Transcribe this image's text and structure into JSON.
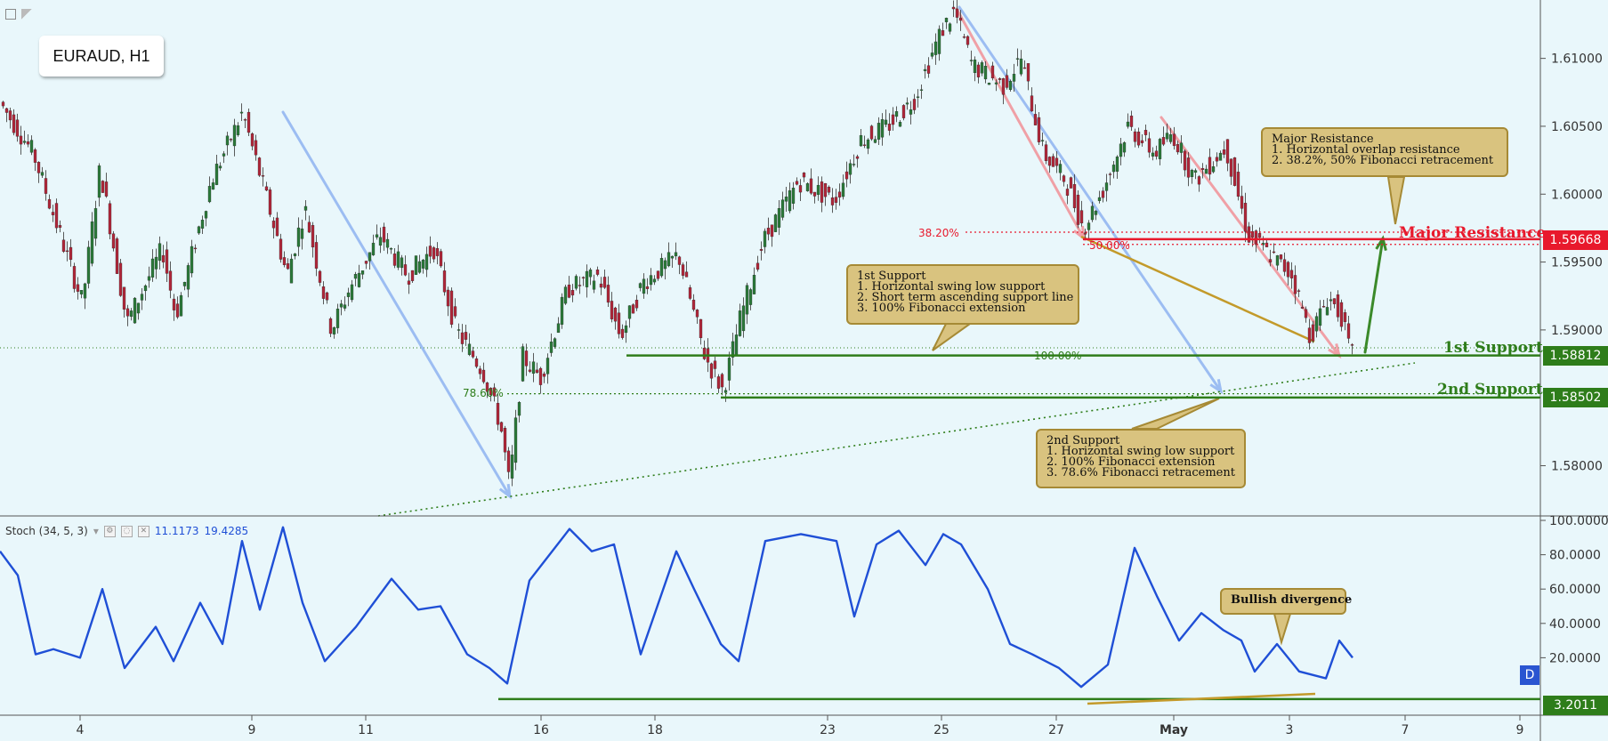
{
  "symbol_label": "EURAUD, H1",
  "stoch_header": {
    "name": "Stoch (34, 5, 3)",
    "k_value": "11.1173",
    "d_value": "19.4285"
  },
  "d_badge": "D",
  "levels": {
    "major_resistance": {
      "label": "Major Resistance",
      "price_tag": "1.59668",
      "color": "#e8192c"
    },
    "first_support": {
      "label": "1st Support",
      "price_tag": "1.58812",
      "color": "#2e7d1a"
    },
    "second_support": {
      "label": "2nd Support",
      "price_tag": "1.58502",
      "color": "#2e7d1a"
    },
    "stoch_support": {
      "price_tag": "3.2011",
      "color": "#2e7d1a"
    }
  },
  "fib_labels": {
    "fib_3820": "38.20%",
    "fib_5000": "50.00%",
    "fib_10000": "100.00%",
    "fib_7860": "78.60%"
  },
  "annotations": {
    "major_resistance_box": [
      "Major Resistance",
      "1. Horizontal overlap resistance",
      "2. 38.2%, 50% Fibonacci retracement"
    ],
    "first_support_box": [
      "1st Support",
      "1. Horizontal swing low support",
      "2. Short term ascending support line",
      "3. 100% Fibonacci extension"
    ],
    "second_support_box": [
      "2nd Support",
      "1. Horizontal swing low support",
      "2. 100% Fibonacci extension",
      "3. 78.6% Fibonacci retracement"
    ],
    "divergence_box": [
      "Bullish divergence"
    ]
  },
  "chart_data": [
    {
      "type": "candlestick",
      "title": "EURAUD, H1",
      "x_tick_labels": [
        "4",
        "9",
        "11",
        "16",
        "18",
        "23",
        "25",
        "27",
        "May",
        "3",
        "7",
        "9"
      ],
      "y_tick_labels": [
        "1.61000",
        "1.60500",
        "1.60000",
        "1.59500",
        "1.59000",
        "1.58000"
      ],
      "ylim": [
        1.5763,
        1.6143
      ],
      "price_path": [
        {
          "x": 0,
          "y": 1.607
        },
        {
          "x": 40,
          "y": 1.603
        },
        {
          "x": 95,
          "y": 1.592
        },
        {
          "x": 115,
          "y": 1.602
        },
        {
          "x": 145,
          "y": 1.5905
        },
        {
          "x": 185,
          "y": 1.596
        },
        {
          "x": 200,
          "y": 1.591
        },
        {
          "x": 240,
          "y": 1.601
        },
        {
          "x": 275,
          "y": 1.606
        },
        {
          "x": 305,
          "y": 1.599
        },
        {
          "x": 325,
          "y": 1.594
        },
        {
          "x": 345,
          "y": 1.599
        },
        {
          "x": 375,
          "y": 1.59
        },
        {
          "x": 395,
          "y": 1.593
        },
        {
          "x": 430,
          "y": 1.597
        },
        {
          "x": 460,
          "y": 1.594
        },
        {
          "x": 490,
          "y": 1.596
        },
        {
          "x": 515,
          "y": 1.59
        },
        {
          "x": 545,
          "y": 1.587
        },
        {
          "x": 565,
          "y": 1.583
        },
        {
          "x": 575,
          "y": 1.5785
        },
        {
          "x": 590,
          "y": 1.588
        },
        {
          "x": 610,
          "y": 1.5865
        },
        {
          "x": 640,
          "y": 1.593
        },
        {
          "x": 675,
          "y": 1.594
        },
        {
          "x": 700,
          "y": 1.5895
        },
        {
          "x": 725,
          "y": 1.5935
        },
        {
          "x": 765,
          "y": 1.5955
        },
        {
          "x": 795,
          "y": 1.588
        },
        {
          "x": 815,
          "y": 1.5855
        },
        {
          "x": 835,
          "y": 1.591
        },
        {
          "x": 860,
          "y": 1.5965
        },
        {
          "x": 900,
          "y": 1.601
        },
        {
          "x": 940,
          "y": 1.5995
        },
        {
          "x": 970,
          "y": 1.604
        },
        {
          "x": 1000,
          "y": 1.605
        },
        {
          "x": 1030,
          "y": 1.607
        },
        {
          "x": 1060,
          "y": 1.612
        },
        {
          "x": 1075,
          "y": 1.6135
        },
        {
          "x": 1095,
          "y": 1.6095
        },
        {
          "x": 1130,
          "y": 1.608
        },
        {
          "x": 1150,
          "y": 1.61
        },
        {
          "x": 1175,
          "y": 1.603
        },
        {
          "x": 1200,
          "y": 1.601
        },
        {
          "x": 1220,
          "y": 1.5975
        },
        {
          "x": 1240,
          "y": 1.6
        },
        {
          "x": 1270,
          "y": 1.605
        },
        {
          "x": 1300,
          "y": 1.603
        },
        {
          "x": 1320,
          "y": 1.6045
        },
        {
          "x": 1345,
          "y": 1.601
        },
        {
          "x": 1380,
          "y": 1.6035
        },
        {
          "x": 1405,
          "y": 1.597
        },
        {
          "x": 1430,
          "y": 1.5955
        },
        {
          "x": 1455,
          "y": 1.594
        },
        {
          "x": 1475,
          "y": 1.5895
        },
        {
          "x": 1495,
          "y": 1.5925
        },
        {
          "x": 1510,
          "y": 1.591
        },
        {
          "x": 1520,
          "y": 1.5882
        }
      ],
      "horizontal_levels": [
        {
          "name": "Major Resistance",
          "value": 1.59668
        },
        {
          "name": "1st Support",
          "value": 1.58812
        },
        {
          "name": "2nd Support",
          "value": 1.58502
        }
      ],
      "fibonacci": [
        {
          "label": "38.20%",
          "value": 1.5972
        },
        {
          "label": "50.00%",
          "value": 1.5963
        },
        {
          "label": "100.00%",
          "value": 1.5881
        },
        {
          "label": "78.60%",
          "value": 1.5853
        }
      ]
    },
    {
      "type": "line",
      "title": "Stoch (34, 5, 3)",
      "y_tick_labels": [
        "100.0000",
        "80.0000",
        "60.0000",
        "40.0000",
        "20.0000"
      ],
      "ylim": [
        0,
        100
      ],
      "series": [
        {
          "name": "Stoch (34, 5, 3)",
          "points": [
            {
              "x": 0,
              "y": 82
            },
            {
              "x": 20,
              "y": 68
            },
            {
              "x": 40,
              "y": 22
            },
            {
              "x": 60,
              "y": 25
            },
            {
              "x": 90,
              "y": 20
            },
            {
              "x": 115,
              "y": 60
            },
            {
              "x": 140,
              "y": 14
            },
            {
              "x": 175,
              "y": 38
            },
            {
              "x": 195,
              "y": 18
            },
            {
              "x": 225,
              "y": 52
            },
            {
              "x": 250,
              "y": 28
            },
            {
              "x": 272,
              "y": 88
            },
            {
              "x": 292,
              "y": 48
            },
            {
              "x": 318,
              "y": 96
            },
            {
              "x": 340,
              "y": 52
            },
            {
              "x": 365,
              "y": 18
            },
            {
              "x": 400,
              "y": 38
            },
            {
              "x": 440,
              "y": 66
            },
            {
              "x": 470,
              "y": 48
            },
            {
              "x": 495,
              "y": 50
            },
            {
              "x": 525,
              "y": 22
            },
            {
              "x": 550,
              "y": 14
            },
            {
              "x": 570,
              "y": 5
            },
            {
              "x": 595,
              "y": 65
            },
            {
              "x": 640,
              "y": 95
            },
            {
              "x": 665,
              "y": 82
            },
            {
              "x": 690,
              "y": 86
            },
            {
              "x": 720,
              "y": 22
            },
            {
              "x": 760,
              "y": 82
            },
            {
              "x": 780,
              "y": 60
            },
            {
              "x": 810,
              "y": 28
            },
            {
              "x": 830,
              "y": 18
            },
            {
              "x": 860,
              "y": 88
            },
            {
              "x": 900,
              "y": 92
            },
            {
              "x": 940,
              "y": 88
            },
            {
              "x": 960,
              "y": 44
            },
            {
              "x": 985,
              "y": 86
            },
            {
              "x": 1010,
              "y": 94
            },
            {
              "x": 1040,
              "y": 74
            },
            {
              "x": 1060,
              "y": 92
            },
            {
              "x": 1080,
              "y": 86
            },
            {
              "x": 1110,
              "y": 60
            },
            {
              "x": 1135,
              "y": 28
            },
            {
              "x": 1160,
              "y": 22
            },
            {
              "x": 1190,
              "y": 14
            },
            {
              "x": 1215,
              "y": 3
            },
            {
              "x": 1245,
              "y": 16
            },
            {
              "x": 1275,
              "y": 84
            },
            {
              "x": 1300,
              "y": 56
            },
            {
              "x": 1325,
              "y": 30
            },
            {
              "x": 1350,
              "y": 46
            },
            {
              "x": 1375,
              "y": 36
            },
            {
              "x": 1395,
              "y": 30
            },
            {
              "x": 1410,
              "y": 12
            },
            {
              "x": 1435,
              "y": 28
            },
            {
              "x": 1460,
              "y": 12
            },
            {
              "x": 1490,
              "y": 8
            },
            {
              "x": 1505,
              "y": 30
            },
            {
              "x": 1520,
              "y": 20
            }
          ]
        }
      ],
      "horizontal_levels": [
        {
          "value": 3.2011
        }
      ]
    }
  ]
}
